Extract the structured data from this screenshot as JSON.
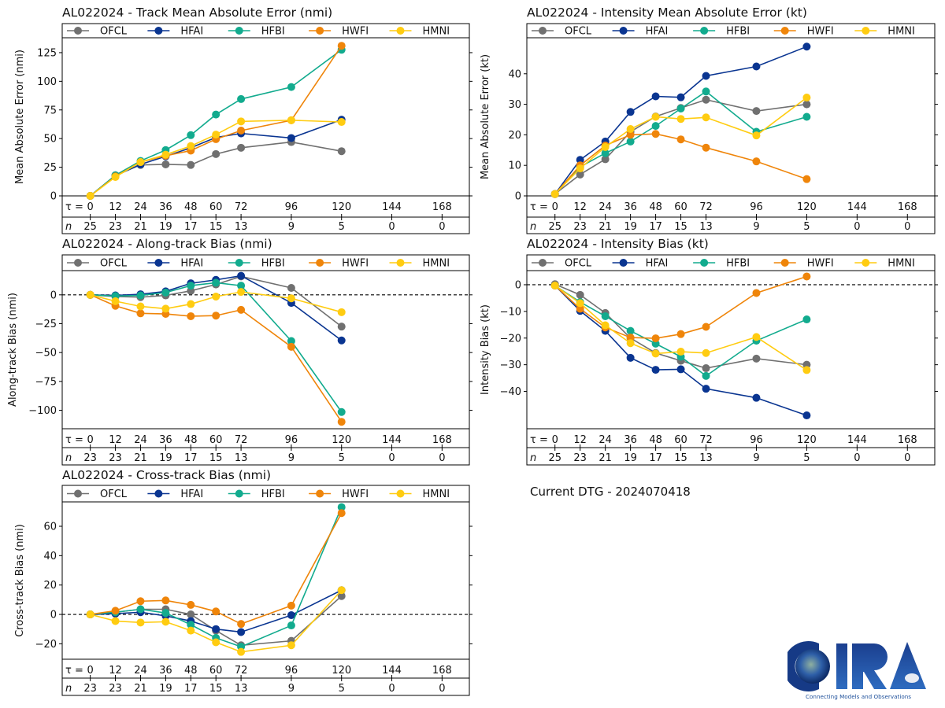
{
  "storm_id": "AL022024",
  "current_dtg_label": "Current DTG - 2024070418",
  "logo": {
    "name": "CIRA",
    "tagline": "Connecting Models and Observations"
  },
  "series_colors": {
    "OFCL": "#707070",
    "HFAI": "#0a3591",
    "HFBI": "#12ab8e",
    "HWFI": "#ef850a",
    "HMNI": "#ffcc11"
  },
  "chart_data": [
    {
      "id": "track-mae",
      "type": "line",
      "title": "AL022024 - Track Mean Absolute Error (nmi)",
      "xlabel": "",
      "ylabel": "Mean Absolute Error (nmi)",
      "tau_label": "τ = ",
      "n_label": "n",
      "x": [
        0,
        12,
        24,
        36,
        48,
        60,
        72,
        96,
        120,
        144,
        168
      ],
      "n": [
        25,
        23,
        21,
        19,
        17,
        15,
        13,
        9,
        5,
        0,
        0
      ],
      "yticks": [
        0,
        25,
        50,
        75,
        100,
        125
      ],
      "ylim": [
        0,
        138
      ],
      "zero_line": false,
      "legend": "top",
      "series": [
        {
          "name": "OFCL",
          "values": [
            0,
            18,
            27,
            27.5,
            27,
            36.5,
            42,
            47,
            39
          ]
        },
        {
          "name": "HFAI",
          "values": [
            0,
            17.5,
            27.5,
            34.5,
            42,
            51,
            54.5,
            50.5,
            66.5
          ]
        },
        {
          "name": "HFBI",
          "values": [
            0,
            18,
            30.5,
            40,
            53,
            71,
            84.5,
            95,
            127.5
          ]
        },
        {
          "name": "HWFI",
          "values": [
            0,
            17,
            29.5,
            35,
            39.5,
            49.5,
            57,
            66,
            131
          ]
        },
        {
          "name": "HMNI",
          "values": [
            0,
            16.5,
            29.5,
            36,
            43.5,
            53.5,
            65,
            66,
            64.5
          ]
        }
      ]
    },
    {
      "id": "intensity-mae",
      "type": "line",
      "title": "AL022024 - Intensity Mean Absolute Error (kt)",
      "xlabel": "",
      "ylabel": "Mean Absolute Error (kt)",
      "tau_label": "τ = ",
      "n_label": "n",
      "x": [
        0,
        12,
        24,
        36,
        48,
        60,
        72,
        96,
        120,
        144,
        168
      ],
      "n": [
        25,
        23,
        21,
        19,
        17,
        15,
        13,
        9,
        5,
        0,
        0
      ],
      "yticks": [
        0,
        10,
        20,
        30,
        40
      ],
      "ylim": [
        0,
        51.8
      ],
      "zero_line": false,
      "legend": "top",
      "series": [
        {
          "name": "OFCL",
          "values": [
            0.6,
            7,
            12,
            21,
            26,
            28.8,
            31.5,
            27.8,
            30
          ]
        },
        {
          "name": "HFAI",
          "values": [
            0.6,
            11.8,
            17.8,
            27.5,
            32.6,
            32.3,
            39.3,
            42.4,
            48.9
          ]
        },
        {
          "name": "HFBI",
          "values": [
            0.6,
            9.5,
            14,
            17.8,
            22.9,
            28.6,
            34.2,
            21,
            25.9
          ]
        },
        {
          "name": "HWFI",
          "values": [
            0.6,
            10,
            16.5,
            20,
            20.3,
            18.5,
            15.8,
            11.3,
            5.5
          ]
        },
        {
          "name": "HMNI",
          "values": [
            0.6,
            9,
            16,
            21.9,
            25.9,
            25.2,
            25.7,
            19.8,
            32.2
          ]
        }
      ]
    },
    {
      "id": "along-track-bias",
      "type": "line",
      "title": "AL022024 - Along-track Bias (nmi)",
      "xlabel": "",
      "ylabel": "Along-track Bias (nmi)",
      "tau_label": "τ = ",
      "n_label": "n",
      "x": [
        0,
        12,
        24,
        36,
        48,
        60,
        72,
        96,
        120,
        144,
        168
      ],
      "n": [
        23,
        23,
        21,
        19,
        17,
        15,
        13,
        9,
        5,
        0,
        0
      ],
      "yticks": [
        -100,
        -75,
        -50,
        -25,
        0
      ],
      "ylim": [
        -116,
        21
      ],
      "zero_line": true,
      "legend": "top",
      "series": [
        {
          "name": "OFCL",
          "values": [
            0,
            -1.5,
            -2,
            -0.5,
            3.5,
            9,
            16,
            6,
            -27.5
          ]
        },
        {
          "name": "HFAI",
          "values": [
            0,
            -0.5,
            0.5,
            3,
            10,
            13,
            16.5,
            -7,
            -39.5
          ]
        },
        {
          "name": "HFBI",
          "values": [
            0,
            -1,
            -0.5,
            2,
            8,
            10.5,
            8,
            -40,
            -101.5
          ]
        },
        {
          "name": "HWFI",
          "values": [
            0,
            -9.5,
            -16,
            -16.5,
            -18.5,
            -18,
            -13,
            -45,
            -110
          ]
        },
        {
          "name": "HMNI",
          "values": [
            0,
            -5.5,
            -10,
            -12,
            -8,
            -1.5,
            2.5,
            -3,
            -15
          ]
        }
      ]
    },
    {
      "id": "intensity-bias",
      "type": "line",
      "title": "AL022024 - Intensity Bias (kt)",
      "xlabel": "",
      "ylabel": "Intensity Bias (kt)",
      "tau_label": "τ = ",
      "n_label": "n",
      "x": [
        0,
        12,
        24,
        36,
        48,
        60,
        72,
        96,
        120,
        144,
        168
      ],
      "n": [
        25,
        23,
        21,
        19,
        17,
        15,
        13,
        9,
        5,
        0,
        0
      ],
      "yticks": [
        -40,
        -30,
        -20,
        -10,
        0
      ],
      "ylim": [
        -54,
        5.3
      ],
      "zero_line": true,
      "legend": "top",
      "series": [
        {
          "name": "OFCL",
          "values": [
            0.2,
            -3.8,
            -10.6,
            -20,
            -25.6,
            -28.5,
            -31.3,
            -27.7,
            -30
          ]
        },
        {
          "name": "HFAI",
          "values": [
            -0.3,
            -9.8,
            -17.3,
            -27.4,
            -31.9,
            -31.7,
            -39,
            -42.4,
            -49
          ]
        },
        {
          "name": "HFBI",
          "values": [
            -0.3,
            -6.5,
            -11.8,
            -17.3,
            -22.1,
            -27,
            -34.2,
            -21,
            -13
          ]
        },
        {
          "name": "HWFI",
          "values": [
            -0.3,
            -9,
            -16,
            -19.8,
            -20.1,
            -18.5,
            -15.8,
            -3.1,
            3.1
          ]
        },
        {
          "name": "HMNI",
          "values": [
            -0.3,
            -6.9,
            -15.2,
            -21.9,
            -25.8,
            -25.1,
            -25.6,
            -19.6,
            -32
          ]
        }
      ]
    },
    {
      "id": "cross-track-bias",
      "type": "line",
      "title": "AL022024 - Cross-track Bias (nmi)",
      "xlabel": "",
      "ylabel": "Cross-track Bias (nmi)",
      "tau_label": "τ = ",
      "n_label": "n",
      "x": [
        0,
        12,
        24,
        36,
        48,
        60,
        72,
        96,
        120,
        144,
        168
      ],
      "n": [
        23,
        23,
        21,
        19,
        17,
        15,
        13,
        9,
        5,
        0,
        0
      ],
      "yticks": [
        -20,
        0,
        20,
        40,
        60
      ],
      "ylim": [
        -30.5,
        76.6
      ],
      "zero_line": true,
      "legend": "top",
      "series": [
        {
          "name": "OFCL",
          "values": [
            0,
            1.5,
            3.5,
            3.5,
            0,
            -11,
            -21,
            -18,
            12.5
          ]
        },
        {
          "name": "HFAI",
          "values": [
            0,
            0.5,
            1.5,
            -1,
            -4.5,
            -10,
            -12,
            -0.5,
            16.5
          ]
        },
        {
          "name": "HFBI",
          "values": [
            0,
            1.5,
            3.5,
            1,
            -7,
            -16,
            -22,
            -7.5,
            73
          ]
        },
        {
          "name": "HWFI",
          "values": [
            0,
            2.5,
            9,
            9.5,
            6.5,
            2,
            -6.5,
            6,
            69
          ]
        },
        {
          "name": "HMNI",
          "values": [
            0,
            -4.5,
            -5.5,
            -5,
            -11,
            -19,
            -25.5,
            -21,
            16.5
          ]
        }
      ]
    }
  ]
}
